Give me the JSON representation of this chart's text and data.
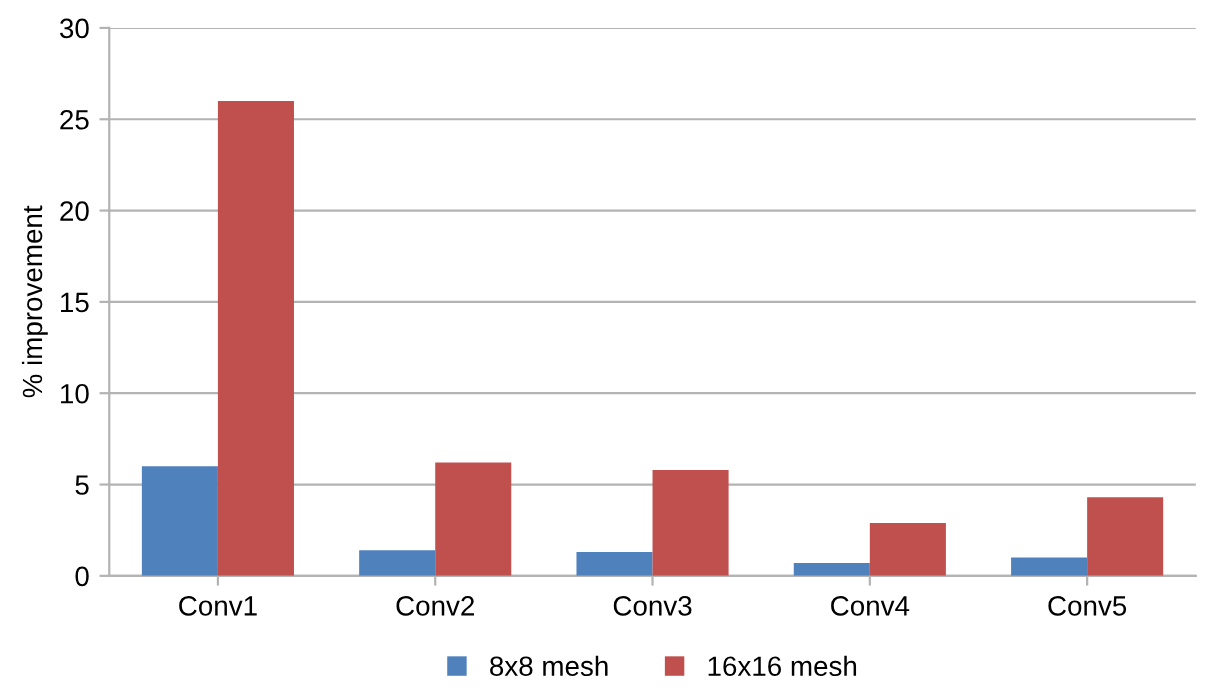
{
  "chart_data": {
    "type": "bar",
    "ylabel": "% improvement",
    "categories": [
      "Conv1",
      "Conv2",
      "Conv3",
      "Conv4",
      "Conv5"
    ],
    "series": [
      {
        "name": "8x8 mesh",
        "color": "#4f81bd",
        "values": [
          6.0,
          1.4,
          1.3,
          0.7,
          1.0
        ]
      },
      {
        "name": "16x16 mesh",
        "color": "#c0504d",
        "values": [
          26.0,
          6.2,
          5.8,
          2.9,
          4.3
        ]
      }
    ],
    "ylim": [
      0,
      30
    ],
    "yticks": [
      0,
      5,
      10,
      15,
      20,
      25,
      30
    ],
    "grid": "y",
    "legend": "bottom"
  }
}
